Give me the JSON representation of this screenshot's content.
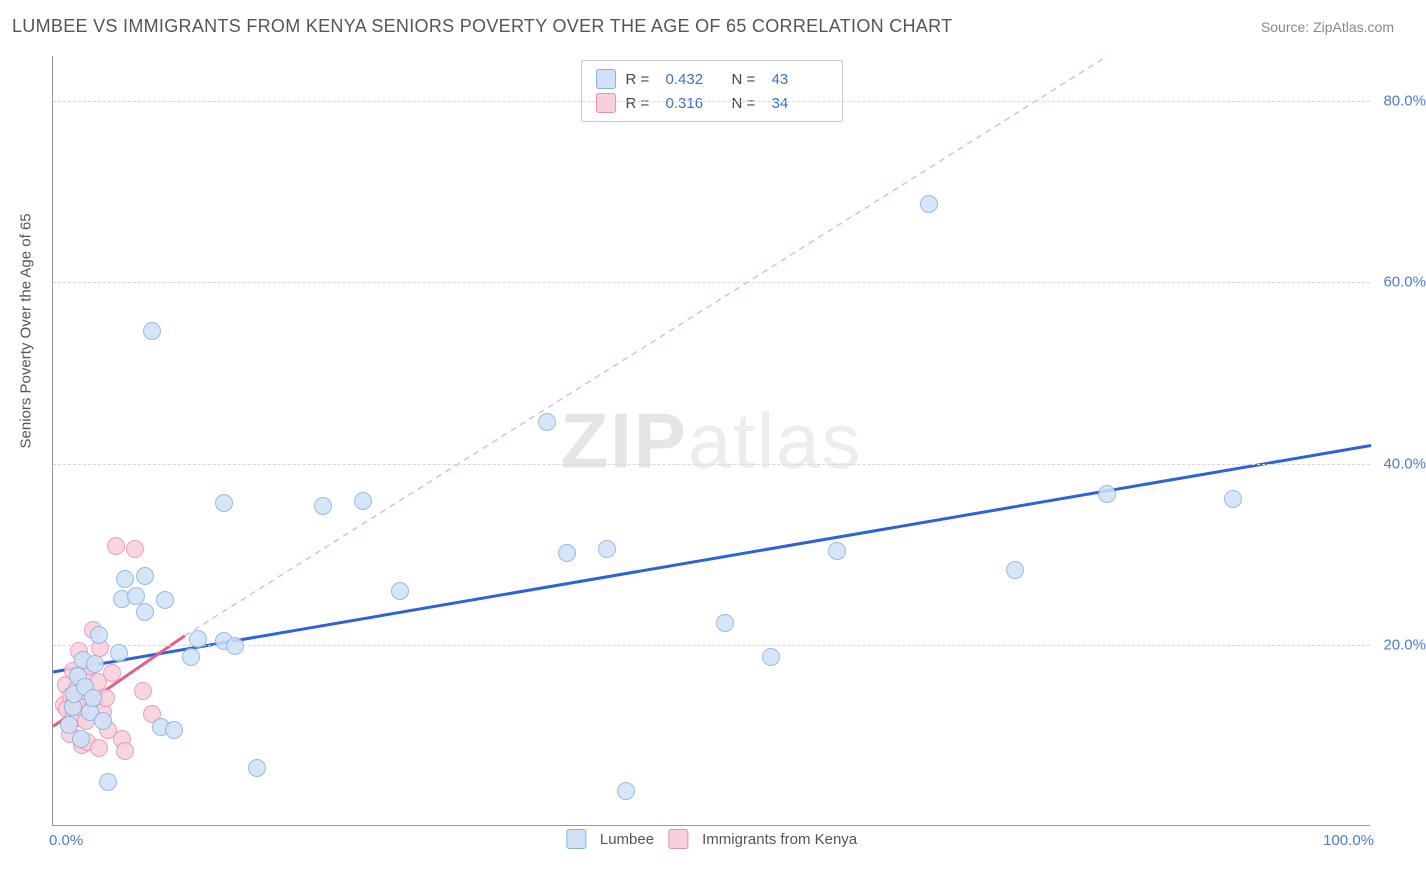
{
  "title": "LUMBEE VS IMMIGRANTS FROM KENYA SENIORS POVERTY OVER THE AGE OF 65 CORRELATION CHART",
  "source": "Source: ZipAtlas.com",
  "watermark_a": "ZIP",
  "watermark_b": "atlas",
  "y_axis_title": "Seniors Poverty Over the Age of 65",
  "chart": {
    "type": "scatter",
    "xlim": [
      0,
      100
    ],
    "ylim": [
      0,
      85
    ],
    "y_ticks": [
      20,
      40,
      60,
      80
    ],
    "y_tick_labels": [
      "20.0%",
      "40.0%",
      "60.0%",
      "80.0%"
    ],
    "x_tick_labels": {
      "min": "0.0%",
      "max": "100.0%"
    },
    "background_color": "#ffffff",
    "grid_color": "#d8d8d8",
    "axis_color": "#999999",
    "tick_label_color": "#4a7bd8",
    "point_radius": 9,
    "series": [
      {
        "name": "Lumbee",
        "fill_color": "#cfe2f8",
        "stroke_color": "#88b0e0",
        "R": "0.432",
        "N": "43",
        "reg_line": {
          "x1": 0,
          "y1": 17,
          "x2": 100,
          "y2": 42,
          "color": "#2d63d6",
          "width": 3,
          "dash": "none"
        },
        "points": [
          {
            "x": 1.2,
            "y": 11
          },
          {
            "x": 1.5,
            "y": 13
          },
          {
            "x": 1.6,
            "y": 14.5
          },
          {
            "x": 1.9,
            "y": 16.5
          },
          {
            "x": 2.1,
            "y": 9.5
          },
          {
            "x": 2.3,
            "y": 18.2
          },
          {
            "x": 2.4,
            "y": 15.2
          },
          {
            "x": 2.8,
            "y": 12.5
          },
          {
            "x": 3.0,
            "y": 14
          },
          {
            "x": 3.2,
            "y": 17.8
          },
          {
            "x": 3.5,
            "y": 21
          },
          {
            "x": 3.8,
            "y": 11.5
          },
          {
            "x": 4.2,
            "y": 4.8
          },
          {
            "x": 5.0,
            "y": 19
          },
          {
            "x": 5.2,
            "y": 25
          },
          {
            "x": 5.5,
            "y": 27.2
          },
          {
            "x": 6.3,
            "y": 25.3
          },
          {
            "x": 7.0,
            "y": 23.5
          },
          {
            "x": 7.0,
            "y": 27.5
          },
          {
            "x": 7.5,
            "y": 54.5
          },
          {
            "x": 8.2,
            "y": 10.8
          },
          {
            "x": 8.5,
            "y": 24.8
          },
          {
            "x": 9.2,
            "y": 10.5
          },
          {
            "x": 10.5,
            "y": 18.5
          },
          {
            "x": 11.0,
            "y": 20.5
          },
          {
            "x": 13.0,
            "y": 35.5
          },
          {
            "x": 13.0,
            "y": 20.3
          },
          {
            "x": 13.8,
            "y": 19.8
          },
          {
            "x": 15.5,
            "y": 6.3
          },
          {
            "x": 20.5,
            "y": 35.2
          },
          {
            "x": 23.5,
            "y": 35.8
          },
          {
            "x": 26.3,
            "y": 25.8
          },
          {
            "x": 37.5,
            "y": 44.5
          },
          {
            "x": 39.0,
            "y": 30
          },
          {
            "x": 42.0,
            "y": 30.5
          },
          {
            "x": 43.5,
            "y": 3.8
          },
          {
            "x": 51.0,
            "y": 22.3
          },
          {
            "x": 54.5,
            "y": 18.5
          },
          {
            "x": 59.5,
            "y": 30.2
          },
          {
            "x": 66.5,
            "y": 68.5
          },
          {
            "x": 73.0,
            "y": 28.2
          },
          {
            "x": 80.0,
            "y": 36.5
          },
          {
            "x": 89.5,
            "y": 36.0
          }
        ]
      },
      {
        "name": "Immigrants from Kenya",
        "fill_color": "#f7d0dc",
        "stroke_color": "#e990ad",
        "R": "0.316",
        "N": "34",
        "reg_line": {
          "x1": 0,
          "y1": 11,
          "x2": 10,
          "y2": 21,
          "color": "#e15f8d",
          "width": 3,
          "dash": "none"
        },
        "ext_line": {
          "x1": 10,
          "y1": 21,
          "x2": 80,
          "y2": 85,
          "color": "#f0b8c8",
          "width": 1.5,
          "dash": "6,5"
        },
        "points": [
          {
            "x": 0.8,
            "y": 13.2
          },
          {
            "x": 1.0,
            "y": 15.5
          },
          {
            "x": 1.1,
            "y": 12.8
          },
          {
            "x": 1.2,
            "y": 11.2
          },
          {
            "x": 1.3,
            "y": 10.0
          },
          {
            "x": 1.4,
            "y": 14.2
          },
          {
            "x": 1.5,
            "y": 17.0
          },
          {
            "x": 1.6,
            "y": 12.0
          },
          {
            "x": 1.7,
            "y": 13.8
          },
          {
            "x": 1.8,
            "y": 15.0
          },
          {
            "x": 1.9,
            "y": 11.8
          },
          {
            "x": 2.0,
            "y": 19.2
          },
          {
            "x": 2.1,
            "y": 13.0
          },
          {
            "x": 2.2,
            "y": 8.8
          },
          {
            "x": 2.3,
            "y": 14.8
          },
          {
            "x": 2.4,
            "y": 16.2
          },
          {
            "x": 2.5,
            "y": 11.5
          },
          {
            "x": 2.6,
            "y": 9.2
          },
          {
            "x": 2.8,
            "y": 17.5
          },
          {
            "x": 3.0,
            "y": 21.5
          },
          {
            "x": 3.2,
            "y": 13.5
          },
          {
            "x": 3.4,
            "y": 15.8
          },
          {
            "x": 3.5,
            "y": 8.5
          },
          {
            "x": 3.6,
            "y": 19.5
          },
          {
            "x": 3.8,
            "y": 12.5
          },
          {
            "x": 4.0,
            "y": 14.0
          },
          {
            "x": 4.2,
            "y": 10.5
          },
          {
            "x": 4.5,
            "y": 16.8
          },
          {
            "x": 4.8,
            "y": 30.8
          },
          {
            "x": 5.2,
            "y": 9.5
          },
          {
            "x": 5.5,
            "y": 8.2
          },
          {
            "x": 6.2,
            "y": 30.5
          },
          {
            "x": 6.8,
            "y": 14.8
          },
          {
            "x": 7.5,
            "y": 12.2
          }
        ]
      }
    ],
    "legend_top_labels": {
      "R": "R =",
      "N": "N ="
    },
    "legend_bottom": [
      "Lumbee",
      "Immigrants from Kenya"
    ]
  }
}
